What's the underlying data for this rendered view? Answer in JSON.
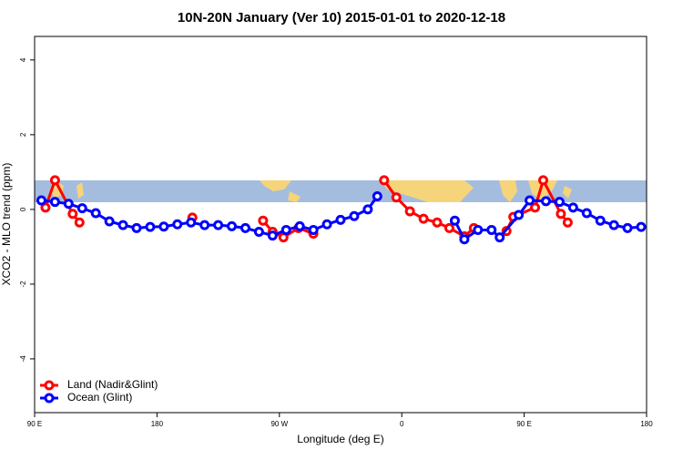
{
  "chart_data": {
    "type": "line",
    "title": "10N-20N January (Ver 10)   2015-01-01 to 2020-12-18",
    "x_label": "Longitude (deg E)",
    "y_label": "XCO2 - MLO trend (ppm)",
    "xlim": [
      90,
      540
    ],
    "xticks": [
      {
        "value": 90,
        "label": "90 E"
      },
      {
        "value": 180,
        "label": "180"
      },
      {
        "value": 270,
        "label": "90 W"
      },
      {
        "value": 360,
        "label": "0"
      },
      {
        "value": 450,
        "label": "90 E"
      },
      {
        "value": 540,
        "label": "180"
      }
    ],
    "ylim": [
      -5.44,
      4.63
    ],
    "yticks": [
      -4,
      -2,
      0,
      2,
      4
    ],
    "legend": "bottom-left",
    "series": [
      {
        "name": "Land (Nadir&Glint)",
        "color": "#ff0000",
        "x": [
          98,
          105,
          118,
          123,
          null,
          206,
          null,
          258,
          265,
          273,
          284,
          295,
          null,
          347,
          356,
          366,
          376,
          386,
          395,
          406,
          413,
          null,
          437,
          442,
          458,
          464,
          477,
          482
        ],
        "values": [
          0.05,
          0.78,
          -0.12,
          -0.35,
          null,
          -0.22,
          null,
          -0.3,
          -0.6,
          -0.75,
          -0.5,
          -0.65,
          null,
          0.78,
          0.32,
          -0.05,
          -0.25,
          -0.35,
          -0.5,
          -0.72,
          -0.5,
          null,
          -0.58,
          -0.2,
          0.05,
          0.78,
          -0.12,
          -0.35
        ]
      },
      {
        "name": "Ocean (Glint)",
        "color": "#0000ff",
        "x": [
          95,
          105,
          115,
          125,
          135,
          145,
          155,
          165,
          175,
          185,
          195,
          205,
          215,
          225,
          235,
          245,
          255,
          265,
          275,
          285,
          295,
          305,
          315,
          325,
          335,
          342,
          null,
          399,
          406,
          416,
          426,
          432,
          446,
          454,
          466,
          476,
          486,
          496,
          506,
          516,
          526,
          536
        ],
        "values": [
          0.24,
          0.2,
          0.15,
          0.03,
          -0.1,
          -0.32,
          -0.42,
          -0.5,
          -0.47,
          -0.46,
          -0.4,
          -0.35,
          -0.42,
          -0.42,
          -0.45,
          -0.5,
          -0.6,
          -0.7,
          -0.55,
          -0.45,
          -0.55,
          -0.4,
          -0.28,
          -0.18,
          0,
          0.35,
          null,
          -0.3,
          -0.8,
          -0.55,
          -0.55,
          -0.75,
          -0.15,
          0.24,
          0.22,
          0.2,
          0.05,
          -0.1,
          -0.3,
          -0.42,
          -0.5,
          -0.47
        ]
      }
    ]
  }
}
